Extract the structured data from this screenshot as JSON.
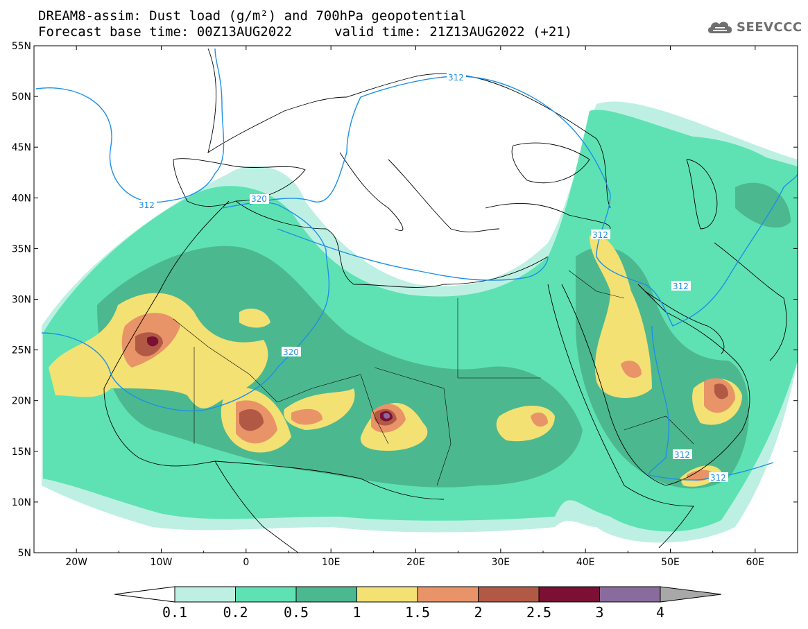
{
  "header": {
    "title_line1": "DREAM8-assim: Dust load (g/m²) and 700hPa geopotential",
    "title_line2a": "Forecast base time: 00Z13AUG2022",
    "title_line2b": "valid time: 21Z13AUG2022 (+21)"
  },
  "logo": {
    "text": "SEEVCCC",
    "icon": "cloud-logo-icon"
  },
  "map": {
    "lon_labels": [
      "20W",
      "10W",
      "0",
      "10E",
      "20E",
      "30E",
      "40E",
      "50E",
      "60E"
    ],
    "lat_labels": [
      "55N",
      "50N",
      "45N",
      "40N",
      "35N",
      "30N",
      "25N",
      "20N",
      "15N",
      "10N",
      "5N"
    ],
    "lon_range": [
      -25,
      65
    ],
    "lat_range": [
      5,
      55
    ],
    "contour_labels": [
      "312",
      "312",
      "320",
      "320",
      "312",
      "312",
      "312",
      "312"
    ]
  },
  "colorbar": {
    "labels": [
      "0.1",
      "0.2",
      "0.5",
      "1",
      "1.5",
      "2",
      "2.5",
      "3",
      "4"
    ],
    "colors": [
      "#bdf0e3",
      "#5ee2b3",
      "#4cb88f",
      "#f3e174",
      "#e99468",
      "#b25945",
      "#7c1034",
      "#8a6b9e"
    ],
    "under_color": "#ffffff",
    "over_color": "#a8a8a8"
  }
}
